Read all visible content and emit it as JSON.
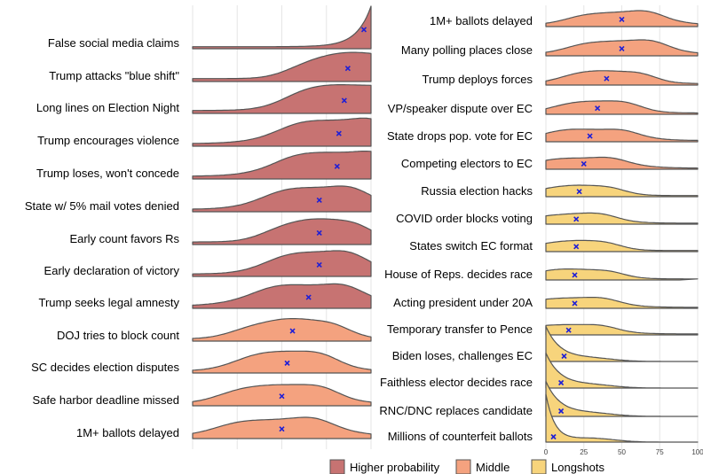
{
  "chart_data": [
    {
      "type": "ridgeline",
      "panel": "left",
      "xlim": [
        0,
        100
      ],
      "grid": true,
      "rows": [
        {
          "label": "False social media claims",
          "mean": 96,
          "group": "Higher probability"
        },
        {
          "label": "Trump attacks \"blue shift\"",
          "mean": 87,
          "group": "Higher probability"
        },
        {
          "label": "Long lines on Election Night",
          "mean": 85,
          "group": "Higher probability"
        },
        {
          "label": "Trump encourages violence",
          "mean": 82,
          "group": "Higher probability"
        },
        {
          "label": "Trump loses, won't concede",
          "mean": 81,
          "group": "Higher probability"
        },
        {
          "label": "State w/ 5% mail votes denied",
          "mean": 71,
          "group": "Higher probability"
        },
        {
          "label": "Early count favors Rs",
          "mean": 71,
          "group": "Higher probability"
        },
        {
          "label": "Early declaration of victory",
          "mean": 71,
          "group": "Higher probability"
        },
        {
          "label": "Trump seeks legal amnesty",
          "mean": 65,
          "group": "Higher probability"
        },
        {
          "label": "DOJ tries to block count",
          "mean": 56,
          "group": "Middle"
        },
        {
          "label": "SC decides election disputes",
          "mean": 53,
          "group": "Middle"
        },
        {
          "label": "Safe harbor deadline missed",
          "mean": 50,
          "group": "Middle"
        },
        {
          "label": "1M+ ballots delayed",
          "mean": 50,
          "group": "Middle"
        }
      ]
    },
    {
      "type": "ridgeline",
      "panel": "right",
      "xlim": [
        0,
        100
      ],
      "xticks": [
        "0",
        "25",
        "50",
        "75",
        "100"
      ],
      "grid": true,
      "rows": [
        {
          "label": "1M+ ballots delayed",
          "mean": 50,
          "group": "Middle"
        },
        {
          "label": "Many polling places close",
          "mean": 50,
          "group": "Middle"
        },
        {
          "label": "Trump deploys forces",
          "mean": 40,
          "group": "Middle"
        },
        {
          "label": "VP/speaker dispute over EC",
          "mean": 34,
          "group": "Middle"
        },
        {
          "label": "State drops pop. vote for EC",
          "mean": 29,
          "group": "Middle"
        },
        {
          "label": "Competing electors to EC",
          "mean": 25,
          "group": "Middle"
        },
        {
          "label": "Russia election hacks",
          "mean": 22,
          "group": "Longshots"
        },
        {
          "label": "COVID order blocks voting",
          "mean": 20,
          "group": "Longshots"
        },
        {
          "label": "States switch EC format",
          "mean": 20,
          "group": "Longshots"
        },
        {
          "label": "House of Reps. decides race",
          "mean": 19,
          "group": "Longshots"
        },
        {
          "label": "Acting president under 20A",
          "mean": 19,
          "group": "Longshots"
        },
        {
          "label": "Temporary transfer to Pence",
          "mean": 15,
          "group": "Longshots"
        },
        {
          "label": "Biden loses, challenges EC",
          "mean": 12,
          "group": "Longshots"
        },
        {
          "label": "Faithless elector decides race",
          "mean": 10,
          "group": "Longshots"
        },
        {
          "label": "RNC/DNC replaces candidate",
          "mean": 10,
          "group": "Longshots"
        },
        {
          "label": "Millions of counterfeit ballots",
          "mean": 5,
          "group": "Longshots"
        }
      ]
    }
  ],
  "legend": {
    "placement": "bottom",
    "items": [
      {
        "label": "Higher probability",
        "color": "#c77372"
      },
      {
        "label": "Middle",
        "color": "#f4a27f"
      },
      {
        "label": "Longshots",
        "color": "#f7d47c"
      }
    ]
  },
  "colors": {
    "Higher probability": "#c77372",
    "Middle": "#f4a27f",
    "Longshots": "#f7d47c",
    "mean_marker": "#1f1fd6",
    "outline": "#555555",
    "grid": "#e6e6e6"
  }
}
